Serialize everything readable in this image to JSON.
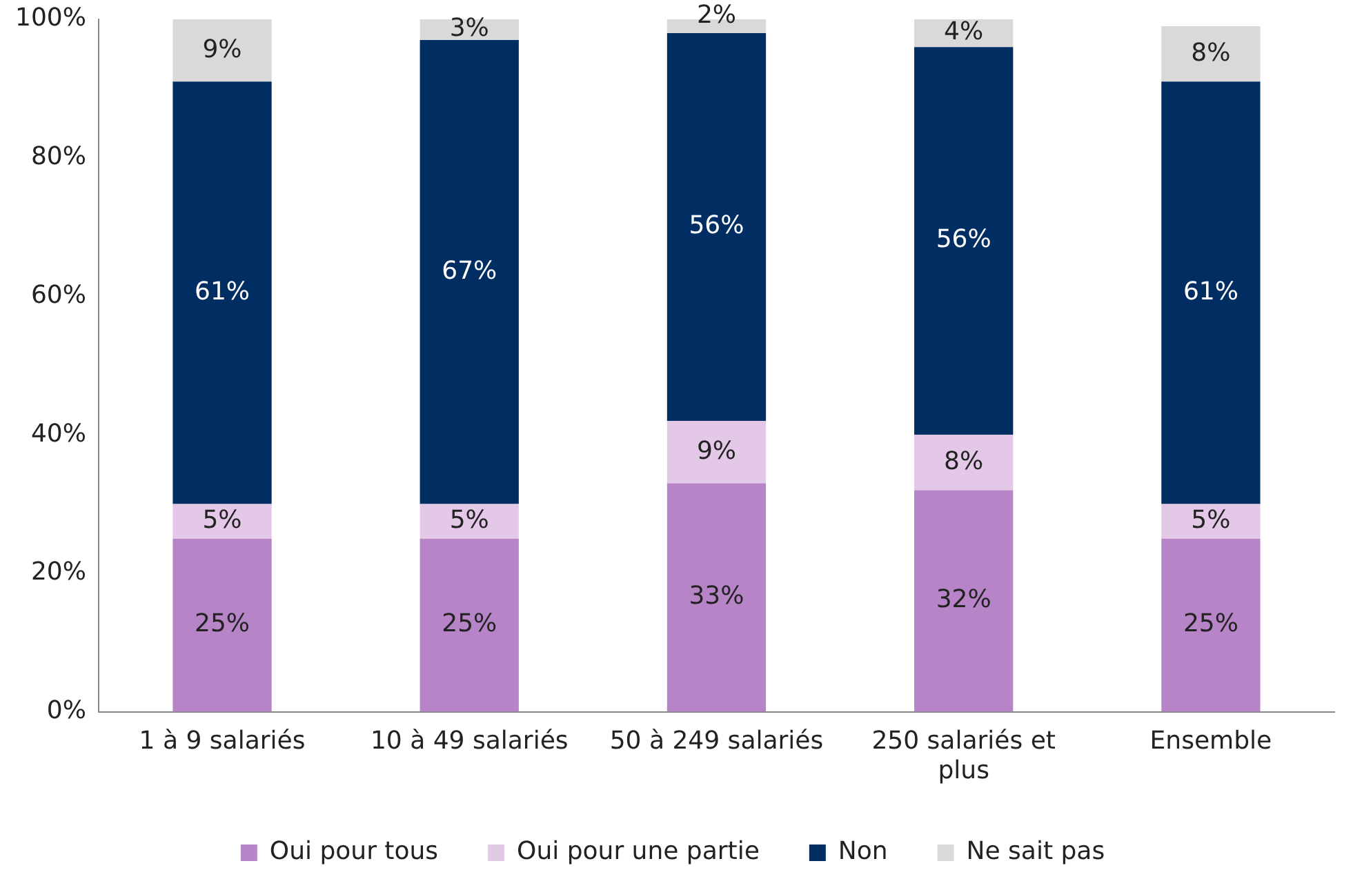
{
  "chart_data": {
    "type": "bar",
    "stacked": true,
    "categories": [
      "1 à 9 salariés",
      "10 à 49 salariés",
      "50 à 249 salariés",
      "250 salariés et plus",
      "Ensemble"
    ],
    "series": [
      {
        "name": "Oui pour tous",
        "color": "#b784c8",
        "values": [
          25,
          25,
          33,
          32,
          25
        ],
        "value_labels": [
          "25%",
          "25%",
          "33%",
          "32%",
          "25%"
        ]
      },
      {
        "name": "Oui pour une partie",
        "color": "#e4c8e8",
        "values": [
          5,
          5,
          9,
          8,
          5
        ],
        "value_labels": [
          "5%",
          "5%",
          "9%",
          "8%",
          "5%"
        ]
      },
      {
        "name": "Non",
        "color": "#002d62",
        "values": [
          61,
          67,
          56,
          56,
          61
        ],
        "value_labels": [
          "61%",
          "67%",
          "56%",
          "56%",
          "61%"
        ]
      },
      {
        "name": "Ne sait pas",
        "color": "#d9d9d9",
        "values": [
          9,
          3,
          2,
          4,
          8
        ],
        "value_labels": [
          "9%",
          "3%",
          "2%",
          "4%",
          "8%"
        ]
      }
    ],
    "ylim": [
      0,
      100
    ],
    "yticks": [
      {
        "value": 0,
        "label": "0%"
      },
      {
        "value": 20,
        "label": "20%"
      },
      {
        "value": 40,
        "label": "40%"
      },
      {
        "value": 60,
        "label": "60%"
      },
      {
        "value": 80,
        "label": "80%"
      },
      {
        "value": 100,
        "label": "100%"
      }
    ],
    "grid": false,
    "legend": "bottom"
  }
}
